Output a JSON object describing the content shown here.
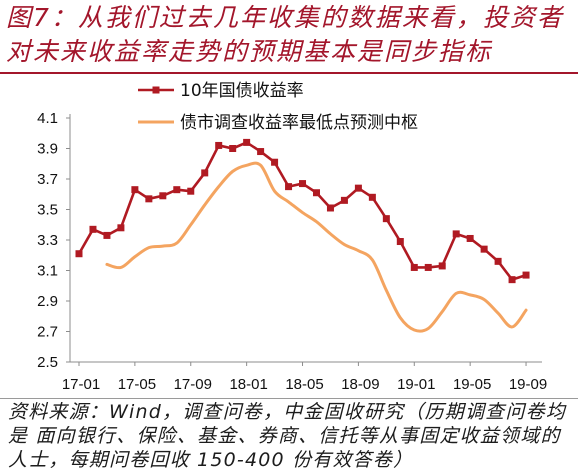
{
  "colors": {
    "title": "#A3162B",
    "title_rule": "#A3162B",
    "source_text": "#1c1c1c",
    "divider": "#9a9a9a",
    "axis": "#8c8c8c"
  },
  "chart_data": {
    "type": "line",
    "title_lines": [
      "图7：从我们过去几年收集的数据来看，投资者",
      "对未来收益率走势的预期基本是同步指标"
    ],
    "source_lines": [
      "资料来源：Wind，调查问卷，中金固收研究（历期调查问卷均",
      "是 面向银行、保险、基金、券商、信托等从事固定收益领域的",
      "人士，每期问卷回收 150-400 份有效答卷）"
    ],
    "xlabel": "",
    "ylabel": "",
    "x": [
      "17-01",
      "17-02",
      "17-03",
      "17-04",
      "17-05",
      "17-06",
      "17-07",
      "17-08",
      "17-09",
      "17-10",
      "17-11",
      "17-12",
      "18-01",
      "18-02",
      "18-03",
      "18-04",
      "18-05",
      "18-06",
      "18-07",
      "18-08",
      "18-09",
      "18-10",
      "18-11",
      "18-12",
      "19-01",
      "19-02",
      "19-03",
      "19-04",
      "19-05",
      "19-06",
      "19-07",
      "19-08",
      "19-09"
    ],
    "x_ticks": [
      "17-01",
      "17-05",
      "17-09",
      "18-01",
      "18-05",
      "18-09",
      "19-01",
      "19-05",
      "19-09"
    ],
    "y_ticks": [
      2.5,
      2.7,
      2.9,
      3.1,
      3.3,
      3.5,
      3.7,
      3.9,
      4.1
    ],
    "ylim": [
      2.5,
      4.1
    ],
    "grid": false,
    "legend_position": "top",
    "series": [
      {
        "name": "10年国债收益率",
        "color": "#B01A22",
        "marker": "square",
        "values": [
          3.21,
          3.37,
          3.33,
          3.38,
          3.63,
          3.57,
          3.59,
          3.63,
          3.62,
          3.74,
          3.92,
          3.9,
          3.94,
          3.88,
          3.81,
          3.65,
          3.67,
          3.61,
          3.51,
          3.56,
          3.64,
          3.58,
          3.44,
          3.29,
          3.12,
          3.12,
          3.13,
          3.34,
          3.31,
          3.24,
          3.16,
          3.04,
          3.07
        ]
      },
      {
        "name": "债市调查收益率最低点预测中枢",
        "color": "#F4A460",
        "marker": "none",
        "smooth": true,
        "values": [
          null,
          null,
          3.14,
          3.12,
          3.19,
          3.25,
          3.26,
          3.28,
          3.4,
          3.53,
          3.65,
          3.75,
          3.79,
          3.79,
          3.62,
          3.55,
          3.48,
          3.42,
          3.34,
          3.27,
          3.23,
          3.17,
          2.97,
          2.79,
          2.71,
          2.72,
          2.83,
          2.95,
          2.94,
          2.91,
          2.82,
          2.73,
          2.84
        ]
      }
    ]
  }
}
